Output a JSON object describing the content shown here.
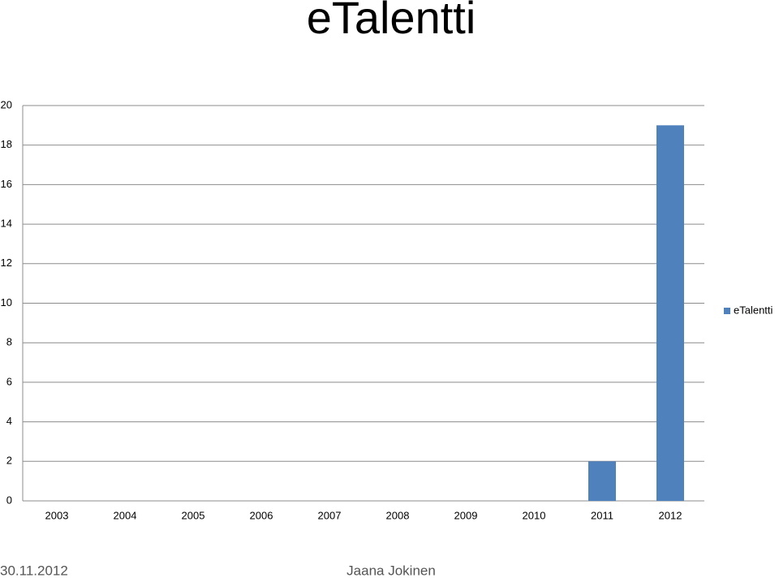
{
  "chart_data": {
    "type": "bar",
    "title": "eTalentti",
    "categories": [
      "2003",
      "2004",
      "2005",
      "2006",
      "2007",
      "2008",
      "2009",
      "2010",
      "2011",
      "2012"
    ],
    "series": [
      {
        "name": "eTalentti",
        "color": "#4f81bd",
        "values": [
          0,
          0,
          0,
          0,
          0,
          0,
          0,
          0,
          2,
          19
        ]
      }
    ],
    "ylim": [
      0,
      20
    ],
    "yticks": [
      0,
      2,
      4,
      6,
      8,
      10,
      12,
      14,
      16,
      18,
      20
    ],
    "grid": true,
    "legend": "right"
  },
  "footer": {
    "date": "30.11.2012",
    "author": "Jaana Jokinen"
  }
}
